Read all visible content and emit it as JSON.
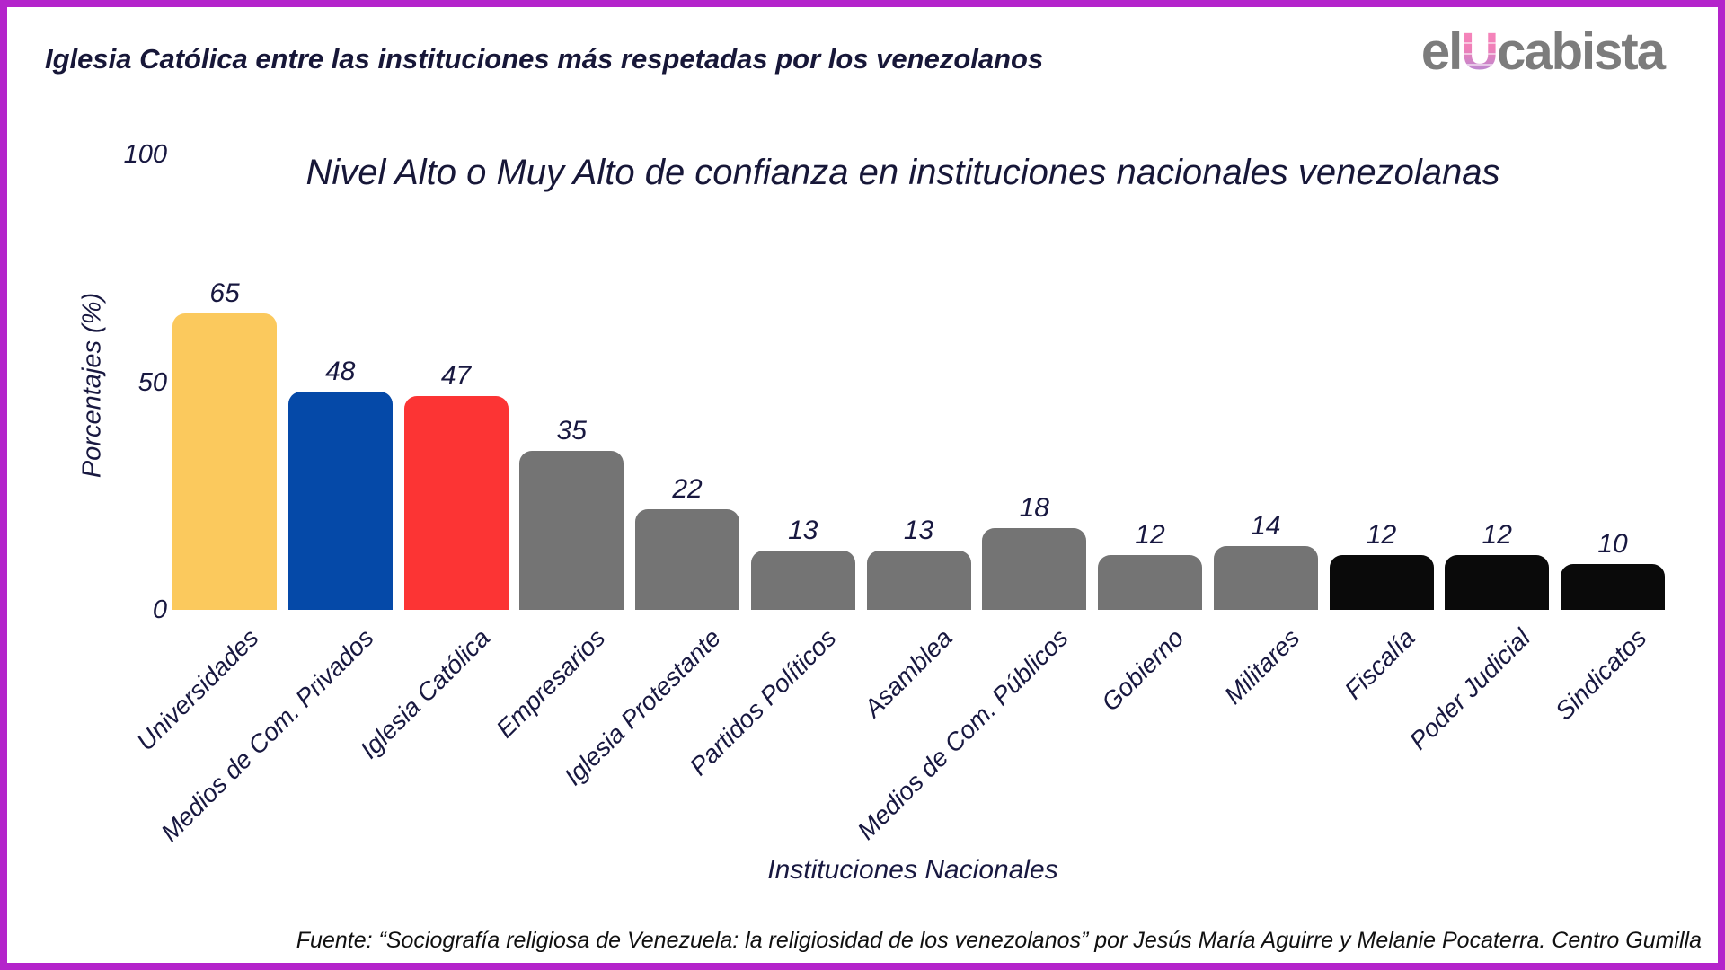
{
  "page": {
    "border_color": "#b424cb",
    "title": "Iglesia Católica entre las instituciones más respetadas por los venezolanos",
    "logo": {
      "prefix": "el",
      "letter": "U",
      "suffix": "cabista",
      "text_color": "#7c7c7c",
      "gradient_top": "#f988bc",
      "gradient_bottom": "#a98ad8"
    },
    "source_note": "Fuente: “Sociografía religiosa de Venezuela: la religiosidad de los venezolanos” por Jesús María Aguirre y Melanie Pocaterra. Centro Gumilla"
  },
  "chart_data": {
    "type": "bar",
    "title": "Nivel Alto o Muy Alto de confianza en instituciones nacionales venezolanas",
    "xlabel": "Instituciones Nacionales",
    "ylabel": "Porcentajes (%)",
    "ylim": [
      0,
      100
    ],
    "yticks": [
      0,
      50,
      100
    ],
    "grid": false,
    "legend": false,
    "categories": [
      "Universidades",
      "Medios de Com. Privados",
      "Iglesia Católica",
      "Empresarios",
      "Iglesia Protestante",
      "Partidos Políticos",
      "Asamblea",
      "Medios de Com. Públicos",
      "Gobierno",
      "Militares",
      "Fiscalía",
      "Poder Judicial",
      "Sindicatos"
    ],
    "values": [
      65,
      48,
      47,
      35,
      22,
      13,
      13,
      18,
      12,
      14,
      12,
      12,
      10
    ],
    "bar_colors": [
      "#fbc95d",
      "#0549a8",
      "#fc3434",
      "#747474",
      "#747474",
      "#747474",
      "#747474",
      "#747474",
      "#747474",
      "#747474",
      "#0a0a0a",
      "#0a0a0a",
      "#0a0a0a"
    ],
    "text_color": "#181840"
  }
}
